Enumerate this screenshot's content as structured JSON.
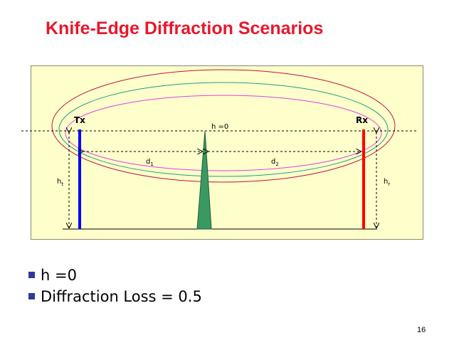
{
  "slide": {
    "title": "Knife-Edge Diffraction Scenarios",
    "page_number": "16"
  },
  "diagram": {
    "labels": {
      "tx": "Tx",
      "rx": "Rx",
      "h_value": "h =0",
      "d1": "d",
      "d1_sub": "1",
      "d2": "d",
      "d2_sub": "2",
      "ht": "h",
      "ht_sub": "t",
      "hr": "h",
      "hr_sub": "r"
    },
    "colors": {
      "panel_background": "#ffffcc",
      "tx_antenna": "#0000ff",
      "rx_antenna": "#ff0000",
      "knife_edge": "#3a9960",
      "fresnel_zone_outer": "#c0143c",
      "fresnel_zone_middle": "#1aa07c",
      "fresnel_zone_inner": "#e040e0"
    }
  },
  "bullets": [
    {
      "text": "h =0"
    },
    {
      "text": "Diffraction Loss = 0.5"
    }
  ]
}
